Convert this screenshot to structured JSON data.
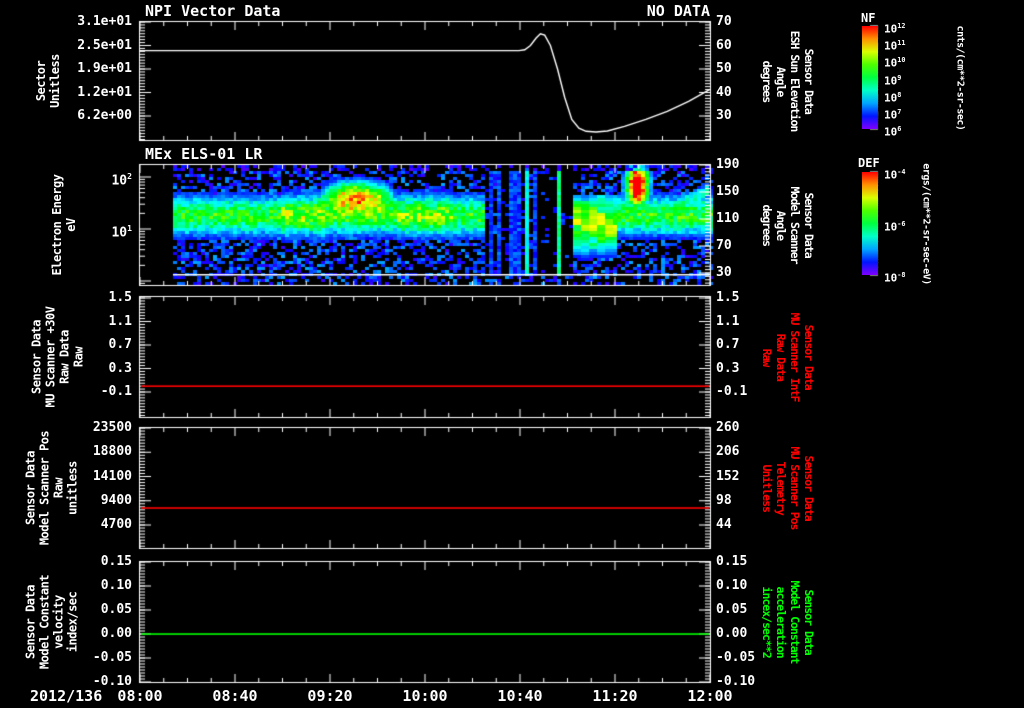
{
  "window": {
    "background": "#000000",
    "foreground": "#ffffff"
  },
  "titles": {
    "panel1_left": "NPI Vector Data",
    "panel1_right": "NO DATA",
    "panel2": "MEx ELS-01 LR"
  },
  "x_axis": {
    "start_label": "2012/136",
    "tick_labels": [
      "08:00",
      "08:40",
      "09:20",
      "10:00",
      "10:40",
      "11:20",
      "12:00"
    ]
  },
  "panels": [
    {
      "name": "npi-vector-data",
      "left_axis": {
        "label": "Sector\nUnitless",
        "ticks": [
          "3.1e+01",
          "2.5e+01",
          "1.9e+01",
          "1.2e+01",
          "6.2e+00"
        ]
      },
      "right_axis": {
        "label": "Sensor Data\nESH Sun Elevation\nAngle\ndegrees",
        "ticks": [
          "70",
          "60",
          "50",
          "40",
          "30"
        ],
        "color": "#ffffff"
      }
    },
    {
      "name": "els-spectrogram",
      "left_axis": {
        "label": "Electron Energy\neV",
        "ticks": [
          "10^2",
          "10^1"
        ]
      },
      "right_axis": {
        "label": "Sensor Data\nModel Scanner\nAngle\ndegrees",
        "ticks": [
          "190",
          "150",
          "110",
          "70",
          "30"
        ],
        "color": "#ffffff"
      }
    },
    {
      "name": "mu-scanner-30v",
      "left_axis": {
        "label": "Sensor Data\nMU Scanner +30V\nRaw Data\nRaw",
        "ticks": [
          "1.5",
          "1.1",
          "0.7",
          "0.3",
          "-0.1"
        ]
      },
      "right_axis": {
        "label": "Sensor Data\nMU Scanner IntF\nRaw Data\nRaw",
        "ticks": [
          "1.5",
          "1.1",
          "0.7",
          "0.3",
          "-0.1"
        ],
        "color": "#ff0000"
      }
    },
    {
      "name": "model-scanner-pos",
      "left_axis": {
        "label": "Sensor Data\nModel Scanner Pos\nRaw\nunitless",
        "ticks": [
          "23500",
          "18800",
          "14100",
          "9400",
          "4700"
        ]
      },
      "right_axis": {
        "label": "Sensor Data\nMU Scanner Pos\nTelemetry\nUnitless",
        "ticks": [
          "260",
          "206",
          "152",
          "98",
          "44"
        ],
        "color": "#ff0000"
      }
    },
    {
      "name": "model-constant",
      "left_axis": {
        "label": "Sensor Data\nModel Constant\nvelocity\nindex/sec",
        "ticks": [
          "0.15",
          "0.10",
          "0.05",
          "0.00",
          "-0.05",
          "-0.10"
        ]
      },
      "right_axis": {
        "label": "Sensor Data\nModel Constant\nacceleration\nincex/sec**2",
        "ticks": [
          "0.15",
          "0.10",
          "0.05",
          "0.00",
          "-0.05",
          "-0.10"
        ],
        "color": "#00ff00"
      }
    }
  ],
  "colorbars": [
    {
      "title": "NF",
      "ticks": [
        "10^12",
        "10^11",
        "10^10",
        "10^9",
        "10^8",
        "10^7",
        "10^6"
      ],
      "unit": "cnts/(cm**2-sr-sec)"
    },
    {
      "title": "DEF",
      "ticks": [
        "10^-4",
        "10^-6",
        "10^-8"
      ],
      "unit": "ergs/(cm**2-sr-sec-eV)"
    }
  ],
  "chart_data": [
    {
      "panel": 1,
      "type": "line",
      "title": "NPI Vector Data",
      "status": "NO DATA",
      "x_axis": {
        "date": "2012/136",
        "range_hours": [
          8,
          12
        ],
        "tick_labels": [
          "08:00",
          "08:40",
          "09:20",
          "10:00",
          "10:40",
          "11:20",
          "12:00"
        ]
      },
      "y_left": {
        "label": "Sector Unitless",
        "ticks": [
          31,
          24.8,
          18.6,
          12.4,
          6.2
        ],
        "range": [
          0,
          31
        ]
      },
      "y_right": {
        "label": "Sensor Data ESH Sun Elevation Angle degrees",
        "ticks": [
          70,
          60,
          50,
          40,
          30
        ],
        "range": [
          18.7,
          70
        ]
      },
      "series": [
        {
          "name": "ESH Sun Elevation Angle",
          "units": "degrees",
          "axis": "right",
          "color": "#ffffff",
          "points": [
            [
              8.0,
              57.8
            ],
            [
              10.66,
              57.8
            ],
            [
              10.7,
              58.2
            ],
            [
              10.74,
              60.0
            ],
            [
              10.78,
              63.2
            ],
            [
              10.81,
              65.0
            ],
            [
              10.84,
              64.4
            ],
            [
              10.88,
              60.0
            ],
            [
              10.93,
              50.0
            ],
            [
              10.98,
              38.0
            ],
            [
              11.03,
              28.5
            ],
            [
              11.08,
              24.8
            ],
            [
              11.13,
              23.5
            ],
            [
              11.2,
              23.2
            ],
            [
              11.28,
              23.6
            ],
            [
              11.4,
              25.6
            ],
            [
              11.55,
              28.6
            ],
            [
              11.7,
              32.0
            ],
            [
              11.85,
              36.2
            ],
            [
              12.0,
              41.3
            ]
          ]
        }
      ]
    },
    {
      "panel": 2,
      "type": "heatmap",
      "title": "MEx ELS-01 LR",
      "x_hours_range": [
        8,
        12
      ],
      "data_start_hour": 8.23,
      "y_axis": {
        "label": "Electron Energy",
        "units": "eV",
        "scale": "log",
        "range_eV": [
          0.84,
          170
        ],
        "ticks": [
          100,
          10
        ]
      },
      "z_axis": {
        "label": "DEF",
        "units": "ergs/(cm**2-sr-sec-eV)",
        "range": [
          1e-08,
          0.0001
        ],
        "colorbar": "rainbow"
      },
      "baseline_band": {
        "center_eV": 18,
        "intensity": 0.55,
        "description": "continuous green-yellow electron band ~5-60 eV with blue speckle background"
      },
      "white_line_eV": 1.3,
      "seed": 136,
      "features": [
        {
          "t0": 9.0,
          "t1": 9.3,
          "type": "enhance",
          "intensity": 0.12,
          "desc": "moderate flux increase"
        },
        {
          "t0": 9.25,
          "t1": 9.8,
          "type": "hot",
          "intensity": 0.7,
          "center_eV": 45,
          "desc": "intense yellow-orange-red enhancement 30-70 eV around 09:20-09:45"
        },
        {
          "t0": 9.8,
          "t1": 10.2,
          "type": "enhance",
          "intensity": 0.1,
          "desc": "mild enhancement"
        },
        {
          "t0": 10.42,
          "t1": 10.78,
          "type": "stripes",
          "desc": "dropout interval with blue vertical stripes"
        },
        {
          "t0": 10.78,
          "t1": 11.04,
          "type": "gap",
          "desc": "dark data gap"
        },
        {
          "t0": 10.92,
          "t1": 10.96,
          "type": "cyan-column",
          "desc": "single bright cyan column near 10:56"
        },
        {
          "t0": 11.04,
          "t1": 11.38,
          "type": "blocky",
          "center_eV": 12,
          "desc": "blocky green-yellow band at lower energies"
        },
        {
          "t0": 11.36,
          "t1": 11.62,
          "type": "red-blob",
          "center_eV": 60,
          "desc": "intense red column 20-170 eV near 11:25-11:35"
        },
        {
          "t0": 11.62,
          "t1": 12.0,
          "type": "diagonal",
          "desc": "green band resumes with rising diagonal streak"
        }
      ]
    },
    {
      "panel": 3,
      "type": "line",
      "y_left": {
        "label": "Sensor Data MU Scanner +30V Raw Data Raw",
        "ticks": [
          1.5,
          1.1,
          0.7,
          0.3,
          -0.1
        ]
      },
      "y_right": {
        "label": "Sensor Data MU Scanner IntF Raw Data Raw",
        "ticks": [
          1.5,
          1.1,
          0.7,
          0.3,
          -0.1
        ]
      },
      "series": [
        {
          "name": "MU Scanner +30V Raw Data",
          "axis": "left",
          "color": "#ff0000",
          "constant_value": 0.0
        }
      ]
    },
    {
      "panel": 4,
      "type": "line",
      "y_left": {
        "label": "Sensor Data Model Scanner Pos Raw unitless",
        "ticks": [
          23500,
          18800,
          14100,
          9400,
          4700
        ]
      },
      "y_right": {
        "label": "Sensor Data MU Scanner Pos Telemetry Unitless",
        "ticks": [
          260,
          206,
          152,
          98,
          44
        ]
      },
      "series": [
        {
          "name": "Model Scanner Pos Raw",
          "axis": "left",
          "color": "#ff0000",
          "constant_value": 8000,
          "right_axis_equivalent": 80
        }
      ]
    },
    {
      "panel": 5,
      "type": "line",
      "y_left": {
        "label": "Sensor Data Model Constant velocity index/sec",
        "ticks": [
          0.15,
          0.1,
          0.05,
          0.0,
          -0.05,
          -0.1
        ]
      },
      "y_right": {
        "label": "Sensor Data Model Constant acceleration incex/sec**2",
        "ticks": [
          0.15,
          0.1,
          0.05,
          0.0,
          -0.05,
          -0.1
        ]
      },
      "series": [
        {
          "name": "Model Constant velocity",
          "axis": "left",
          "color": "#00ff00",
          "constant_value": 0.0
        }
      ]
    }
  ]
}
